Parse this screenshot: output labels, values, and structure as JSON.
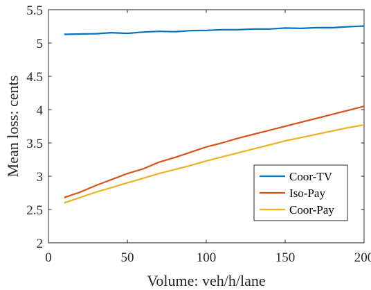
{
  "chart_data": {
    "type": "line",
    "title": "",
    "xlabel": "Volume: veh/h/lane",
    "ylabel": "Mean loss: cents",
    "xlim": [
      0,
      200
    ],
    "ylim": [
      2,
      5.5
    ],
    "xticks": [
      0,
      50,
      100,
      150,
      200
    ],
    "xtick_labels": [
      "0",
      "50",
      "100",
      "150",
      "200"
    ],
    "yticks": [
      2,
      2.5,
      3,
      3.5,
      4,
      4.5,
      5,
      5.5
    ],
    "ytick_labels": [
      "2",
      "2.5",
      "3",
      "3.5",
      "4",
      "4.5",
      "5",
      "5.5"
    ],
    "grid": false,
    "legend_position": "bottom-right",
    "x": [
      10,
      20,
      30,
      40,
      50,
      60,
      70,
      80,
      90,
      100,
      110,
      120,
      130,
      140,
      150,
      160,
      170,
      180,
      190,
      200
    ],
    "series": [
      {
        "name": "Coor-TV",
        "color": "#0072BD",
        "values": [
          5.13,
          5.135,
          5.14,
          5.155,
          5.145,
          5.165,
          5.175,
          5.17,
          5.185,
          5.19,
          5.2,
          5.2,
          5.21,
          5.21,
          5.225,
          5.22,
          5.23,
          5.23,
          5.245,
          5.255
        ]
      },
      {
        "name": "Iso-Pay",
        "color": "#D95319",
        "values": [
          2.68,
          2.76,
          2.86,
          2.95,
          3.04,
          3.11,
          3.21,
          3.28,
          3.36,
          3.44,
          3.5,
          3.57,
          3.63,
          3.69,
          3.75,
          3.81,
          3.87,
          3.93,
          3.99,
          4.05
        ]
      },
      {
        "name": "Coor-Pay",
        "color": "#EDB120",
        "values": [
          2.6,
          2.68,
          2.76,
          2.83,
          2.9,
          2.97,
          3.04,
          3.1,
          3.16,
          3.23,
          3.29,
          3.35,
          3.41,
          3.47,
          3.53,
          3.58,
          3.63,
          3.68,
          3.73,
          3.77
        ]
      }
    ]
  }
}
